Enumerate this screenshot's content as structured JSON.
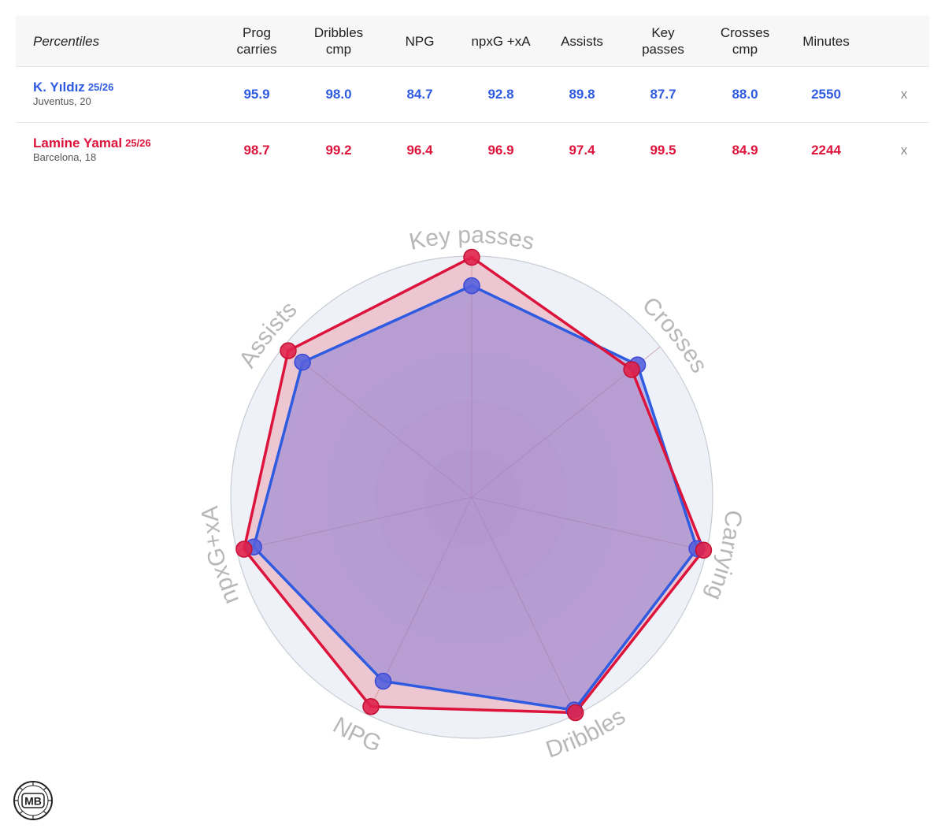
{
  "table": {
    "header_label": "Percentiles",
    "columns": [
      [
        "Prog",
        "carries"
      ],
      [
        "Dribbles",
        "cmp"
      ],
      [
        "NPG"
      ],
      [
        "npxG +xA"
      ],
      [
        "Assists"
      ],
      [
        "Key",
        "passes"
      ],
      [
        "Crosses",
        "cmp"
      ],
      [
        "Minutes"
      ]
    ],
    "remove_label": "x",
    "players": [
      {
        "name": "K. Yıldız",
        "season": "25/26",
        "club": "Juventus, 20",
        "color": "#2f5be0",
        "values": [
          "95.9",
          "98.0",
          "84.7",
          "92.8",
          "89.8",
          "87.7",
          "88.0",
          "2550"
        ]
      },
      {
        "name": "Lamine Yamal",
        "season": "25/26",
        "club": "Barcelona, 18",
        "color": "#dc143c",
        "values": [
          "98.7",
          "99.2",
          "96.4",
          "96.9",
          "97.4",
          "99.5",
          "84.9",
          "2244"
        ]
      }
    ]
  },
  "chart_data": {
    "type": "radar",
    "axes": [
      "Key passes",
      "Crosses",
      "Carrying",
      "Dribbles",
      "NPG",
      "npxG+xA",
      "Assists"
    ],
    "range": [
      0,
      100
    ],
    "series": [
      {
        "name": "K. Yıldız",
        "color": "#2f5be0",
        "values": [
          87.7,
          88.0,
          95.9,
          98.0,
          84.7,
          92.8,
          89.8
        ]
      },
      {
        "name": "Lamine Yamal",
        "color": "#dc143c",
        "values": [
          99.5,
          84.9,
          98.7,
          99.2,
          96.4,
          96.9,
          97.4
        ]
      }
    ],
    "colors": {
      "blue_fill": "#7b6fd6",
      "red_fill": "#e8909f",
      "ring_fill": "#eef2f8",
      "grid": "#c9a9b4",
      "axis_label": "#b8b8b8"
    }
  },
  "logo": {
    "text": "MB"
  }
}
